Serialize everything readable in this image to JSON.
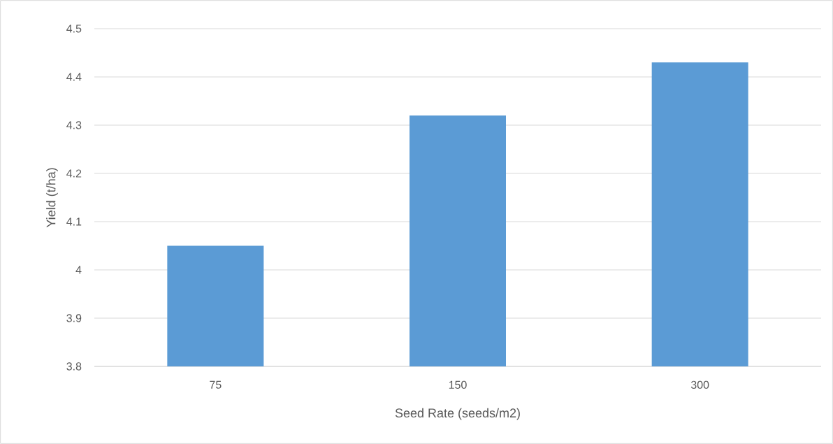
{
  "chart_data": {
    "type": "bar",
    "xlabel": "Seed Rate (seeds/m2)",
    "ylabel": "Yield (t/ha)",
    "categories": [
      "75",
      "150",
      "300"
    ],
    "values": [
      4.05,
      4.32,
      4.43
    ],
    "color": "#5b9bd5",
    "ylim": [
      3.8,
      4.5
    ],
    "yticks": [
      3.8,
      3.9,
      4,
      4.1,
      4.2,
      4.3,
      4.4,
      4.5
    ],
    "grid": "y"
  }
}
